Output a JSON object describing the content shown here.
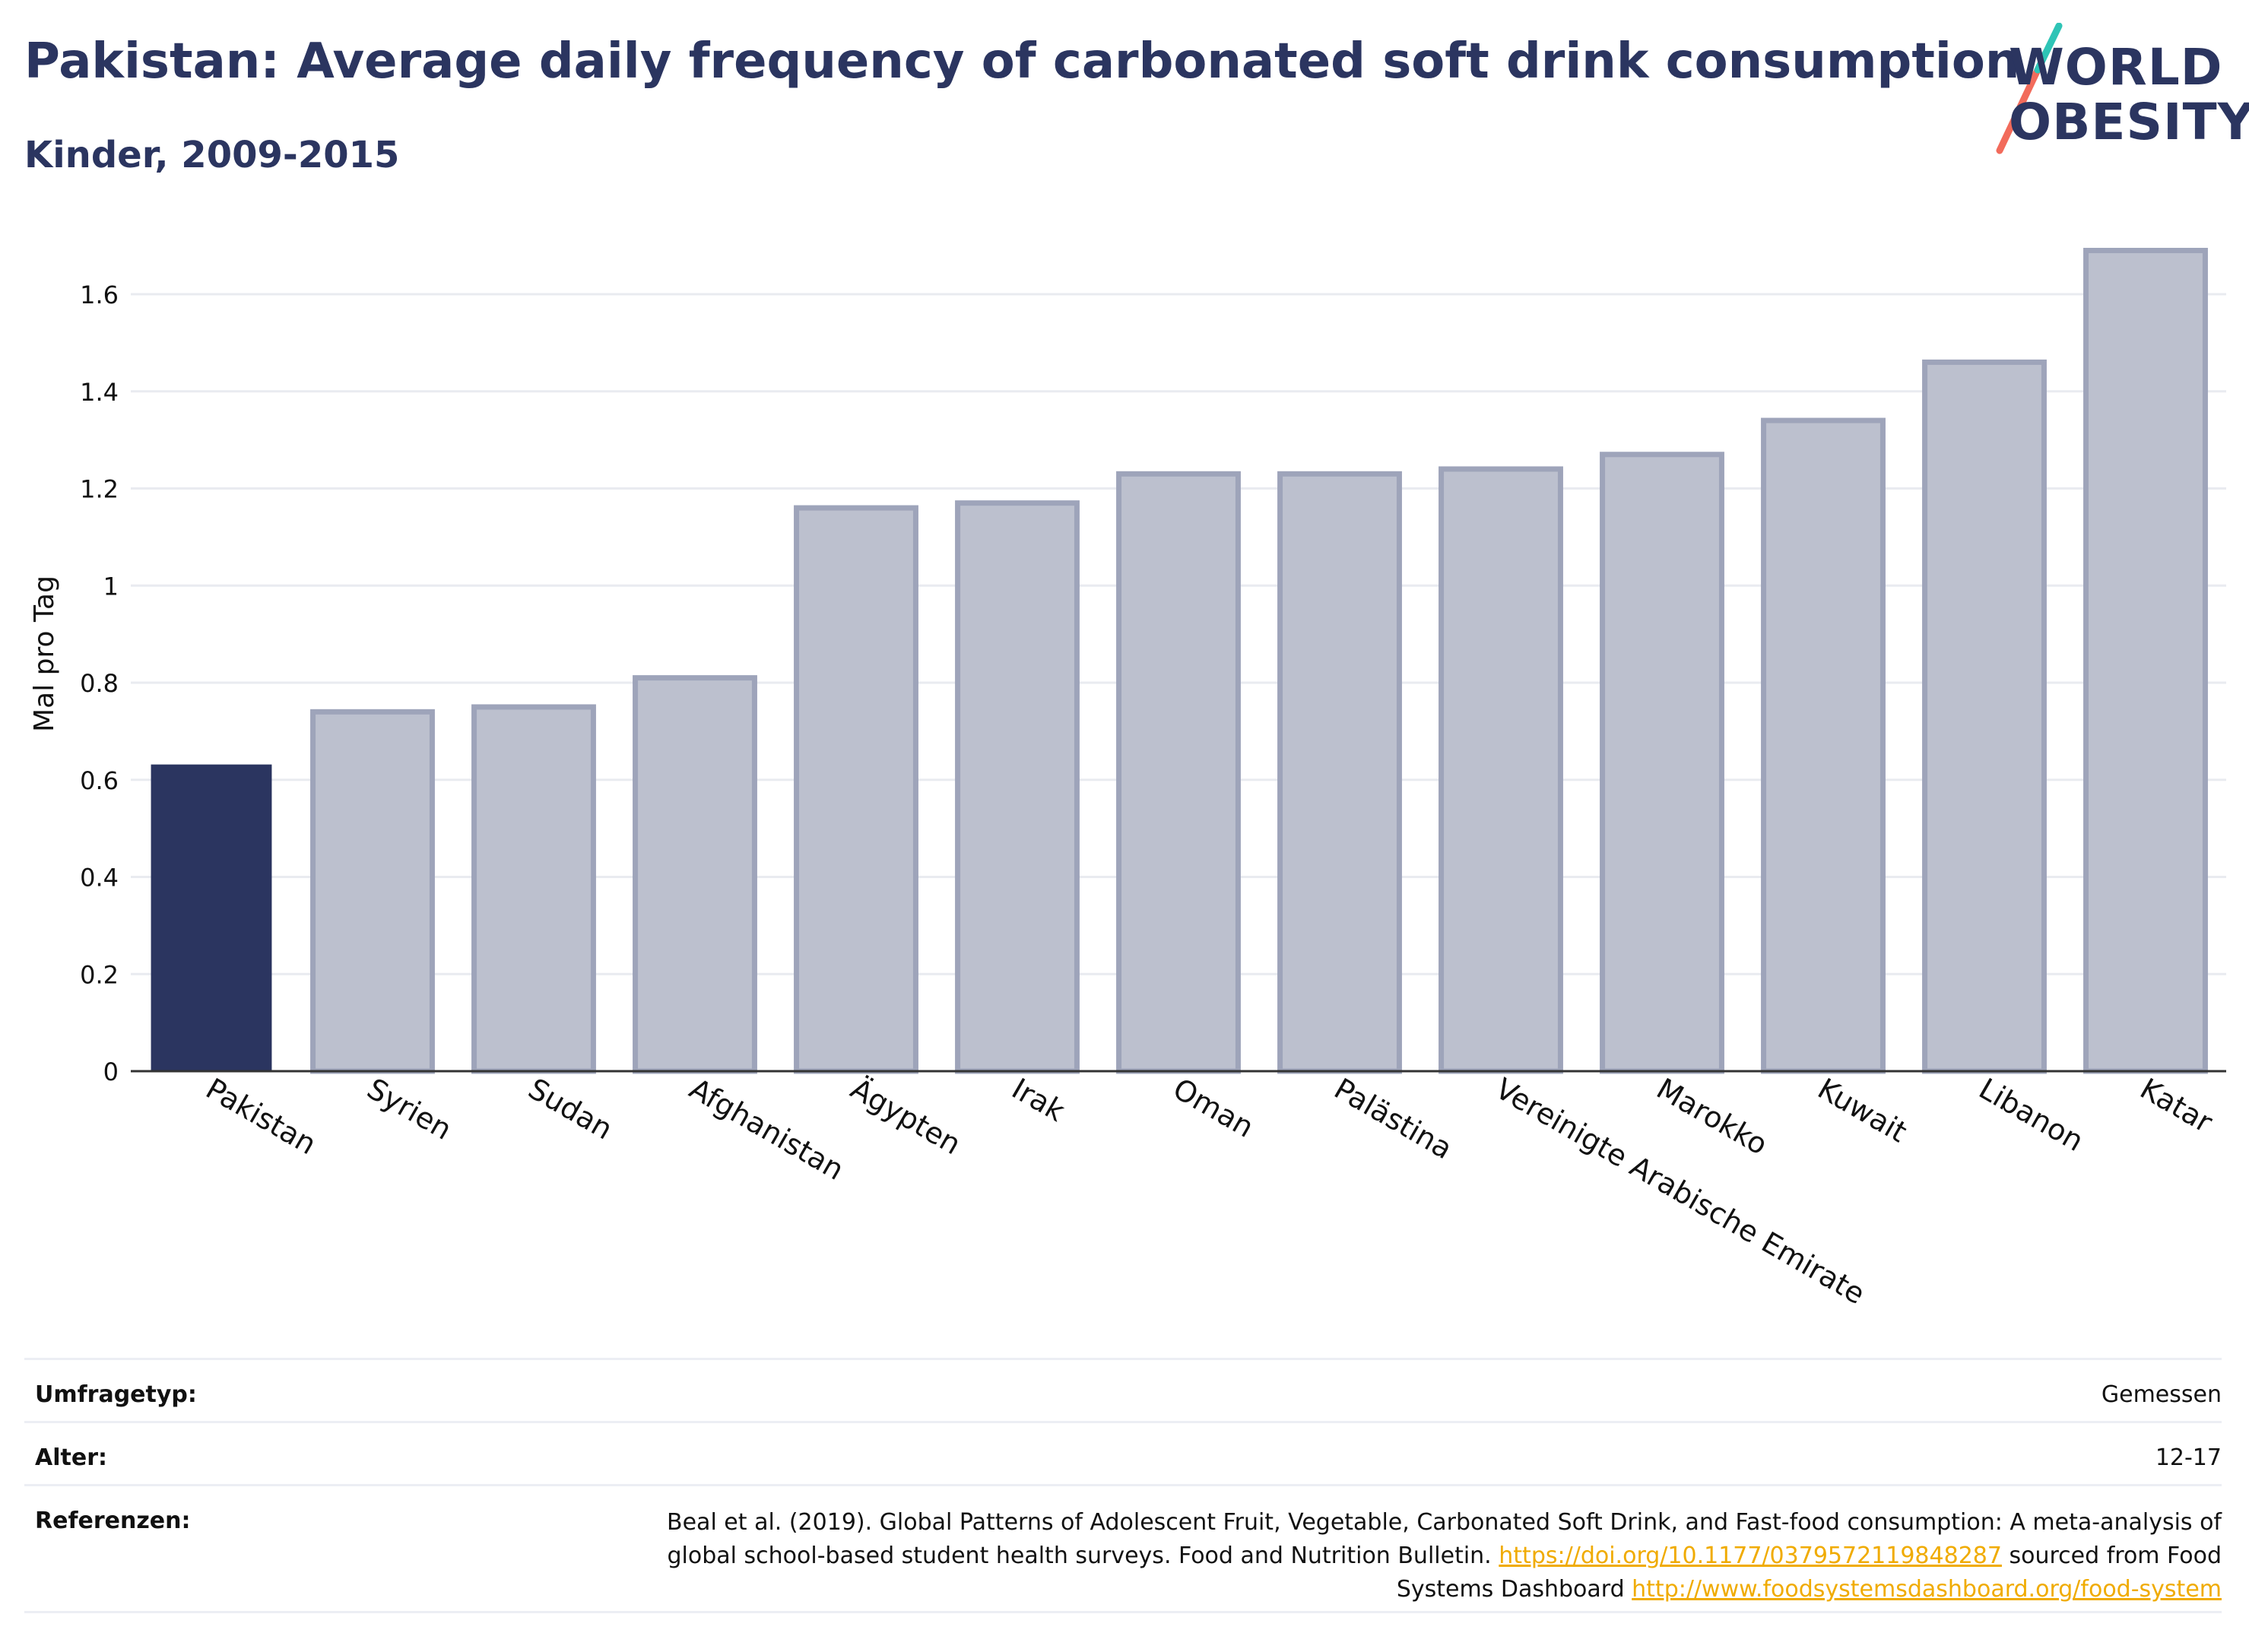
{
  "header": {
    "title": "Pakistan: Average daily frequency of carbonated soft drink consumption",
    "subtitle": "Kinder, 2009-2015"
  },
  "logo": {
    "line1": "WORLD",
    "line2": "OBESITY",
    "accent_teal": "#2ec4b6",
    "accent_coral": "#f26b5b"
  },
  "colors": {
    "highlight_bar": "#2b3560",
    "other_bar_fill": "#bcc0ce",
    "other_bar_stroke": "#9ea4ba",
    "text": "#2b3560",
    "link": "#f0ab00"
  },
  "chart_data": {
    "type": "bar",
    "categories": [
      "Pakistan",
      "Syrien",
      "Sudan",
      "Afghanistan",
      "Ägypten",
      "Irak",
      "Oman",
      "Palästina",
      "Vereinigte Arabische Emirate",
      "Marokko",
      "Kuwait",
      "Libanon",
      "Katar"
    ],
    "values": [
      0.63,
      0.74,
      0.75,
      0.81,
      1.16,
      1.17,
      1.23,
      1.23,
      1.24,
      1.27,
      1.34,
      1.46,
      1.69
    ],
    "highlight": "Pakistan",
    "ylabel": "Mal pro Tag",
    "xlabel": "",
    "ylim": [
      0,
      1.75
    ],
    "yticks": [
      0,
      0.2,
      0.4,
      0.6,
      0.8,
      1,
      1.2,
      1.4,
      1.6
    ],
    "ytick_labels": [
      "0",
      "0.2",
      "0.4",
      "0.6",
      "0.8",
      "1",
      "1.2",
      "1.4",
      "1.6"
    ],
    "grid": true,
    "legend": "none"
  },
  "metadata": {
    "survey_type_label": "Umfragetyp:",
    "survey_type_value": "Gemessen",
    "age_label": "Alter:",
    "age_value": "12-17",
    "references_label": "Referenzen:",
    "references_text_1": "Beal et al. (2019). Global Patterns of Adolescent Fruit, Vegetable, Carbonated Soft Drink, and Fast-food consumption: A meta-analysis of global school-based student health surveys. Food and Nutrition Bulletin.",
    "references_link_1": "https://doi.org/10.1177/0379572119848287",
    "references_text_2": "sourced from Food Systems Dashboard",
    "references_link_2": "http://www.foodsystemsdashboard.org/food-system"
  }
}
